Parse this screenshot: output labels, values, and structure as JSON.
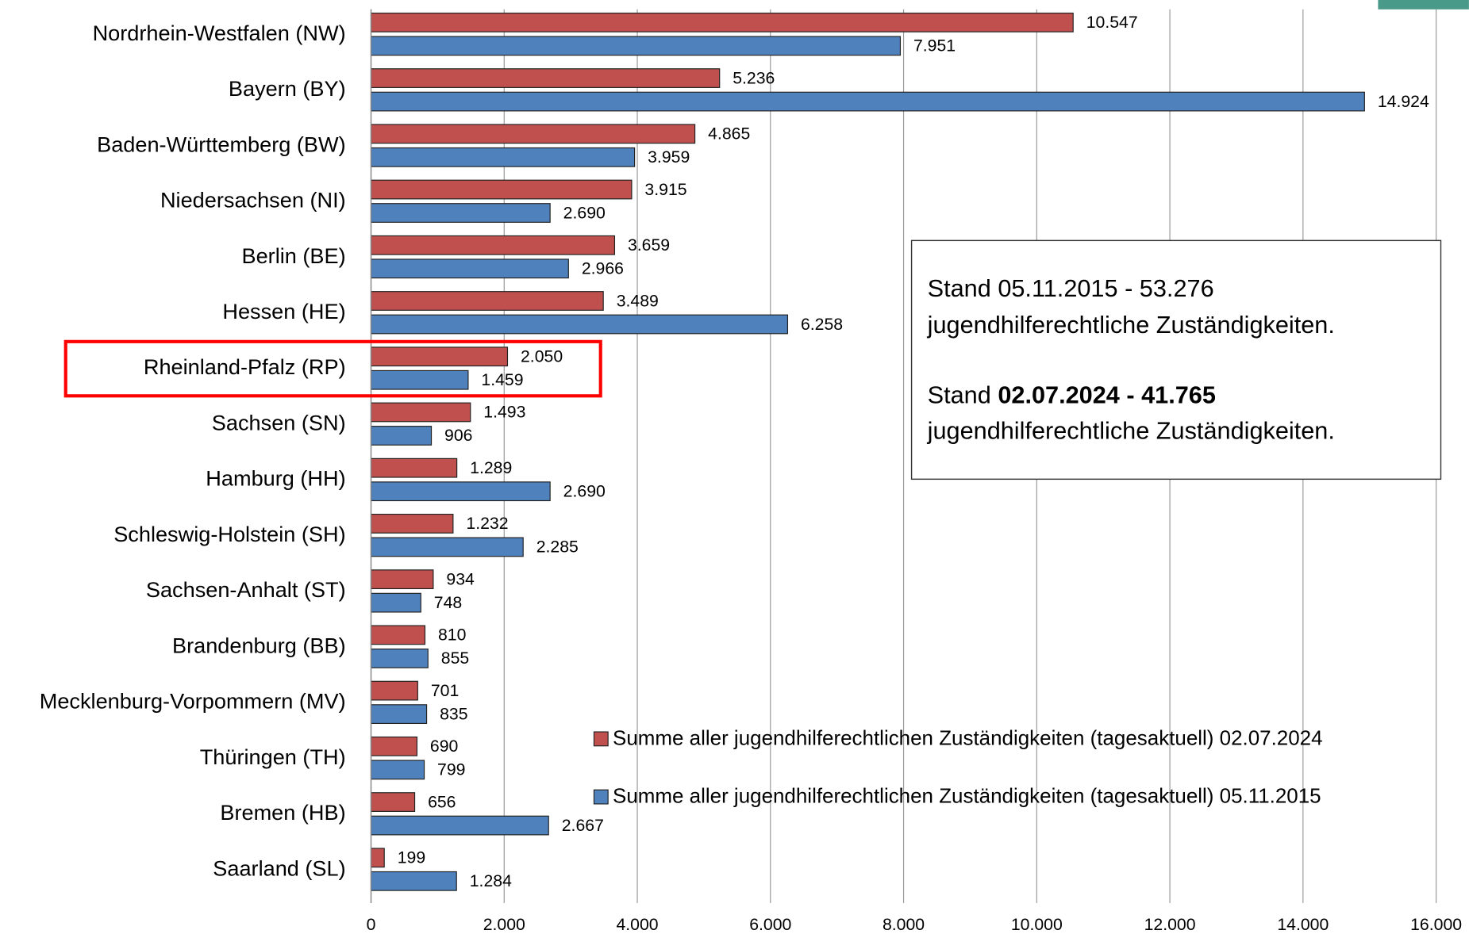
{
  "chart_data": {
    "type": "bar",
    "orientation": "horizontal",
    "categories": [
      "Nordrhein-Westfalen (NW)",
      "Bayern (BY)",
      "Baden-Württemberg (BW)",
      "Niedersachsen (NI)",
      "Berlin (BE)",
      "Hessen (HE)",
      "Rheinland-Pfalz (RP)",
      "Sachsen (SN)",
      "Hamburg (HH)",
      "Schleswig-Holstein (SH)",
      "Sachsen-Anhalt (ST)",
      "Brandenburg (BB)",
      "Mecklenburg-Vorpommern (MV)",
      "Thüringen (TH)",
      "Bremen (HB)",
      "Saarland (SL)"
    ],
    "series": [
      {
        "name": "Summe aller jugendhilferechtlichen Zuständigkeiten (tagesaktuell) 02.07.2024",
        "color": "#c0504d",
        "values": [
          10547,
          5236,
          4865,
          3915,
          3659,
          3489,
          2050,
          1493,
          1289,
          1232,
          934,
          810,
          701,
          690,
          656,
          199
        ],
        "value_labels": [
          "10.547",
          "5.236",
          "4.865",
          "3.915",
          "3.659",
          "3.489",
          "2.050",
          "1.493",
          "1.289",
          "1.232",
          "934",
          "810",
          "701",
          "690",
          "656",
          "199"
        ]
      },
      {
        "name": "Summe aller jugendhilferechtlichen Zuständigkeiten (tagesaktuell) 05.11.2015",
        "color": "#4f81bd",
        "values": [
          7951,
          14924,
          3959,
          2690,
          2966,
          6258,
          1459,
          906,
          2690,
          2285,
          748,
          855,
          835,
          799,
          2667,
          1284
        ],
        "value_labels": [
          "7.951",
          "14.924",
          "3.959",
          "2.690",
          "2.966",
          "6.258",
          "1.459",
          "906",
          "2.690",
          "2.285",
          "748",
          "855",
          "835",
          "799",
          "2.667",
          "1.284"
        ]
      }
    ],
    "xlim": [
      0,
      16000
    ],
    "xticks": [
      0,
      {
        "value": 2000,
        "label": "2.000"
      },
      {
        "value": 4000,
        "label": "4.000"
      },
      {
        "value": 6000,
        "label": "6.000"
      },
      {
        "value": 8000,
        "label": "8.000"
      },
      {
        "value": 10000,
        "label": "10.000"
      },
      {
        "value": 12000,
        "label": "12.000"
      },
      {
        "value": 14000,
        "label": "14.000"
      },
      {
        "value": 16000,
        "label": "16.000"
      }
    ],
    "grid": true,
    "annotation": {
      "line1": "Stand 05.11.2015 - 53.276",
      "line2": "jugendhilferechtliche Zuständigkeiten.",
      "line3_prefix": "Stand",
      "line3_bold": "02.07.2024 - 41.765",
      "line4": "jugendhilferechtliche Zuständigkeiten."
    }
  }
}
